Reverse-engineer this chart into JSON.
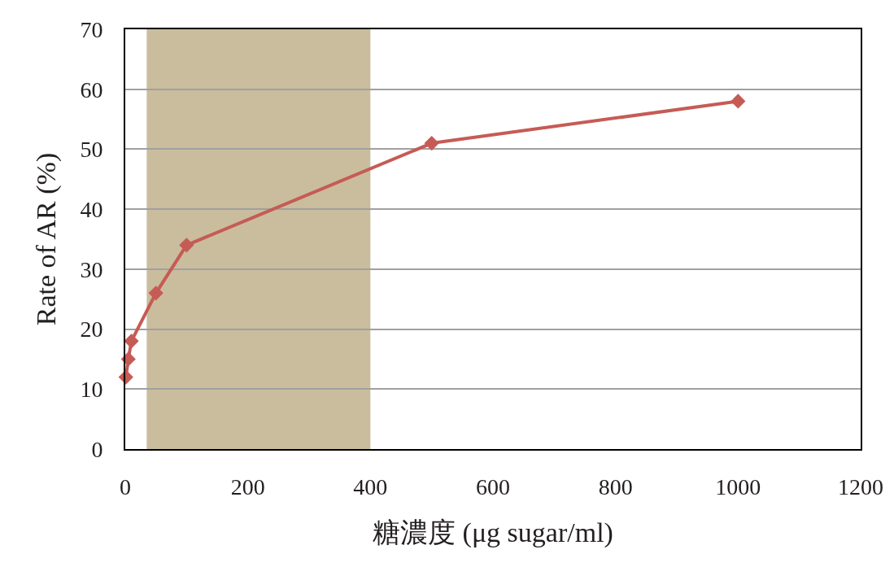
{
  "chart_data": {
    "type": "line",
    "xlabel": "糖濃度 (μg sugar/ml)",
    "ylabel": "Rate of AR (%)",
    "x": [
      1,
      5,
      10,
      50,
      100,
      500,
      1000
    ],
    "series": [
      {
        "color": "#c65b55",
        "values": [
          12,
          15,
          18,
          26,
          34,
          51,
          58
        ]
      }
    ],
    "xlim": [
      0,
      1200
    ],
    "xticks": [
      0,
      200,
      400,
      600,
      800,
      1000,
      1200
    ],
    "ylim": [
      0,
      70
    ],
    "yticks": [
      0,
      10,
      20,
      30,
      40,
      50,
      60,
      70
    ],
    "grid": "y",
    "marker": "diamond",
    "line_style": "solid",
    "bands": [
      {
        "axis": "x",
        "from": 35,
        "to": 400,
        "color": "#c9bd9e"
      }
    ]
  }
}
